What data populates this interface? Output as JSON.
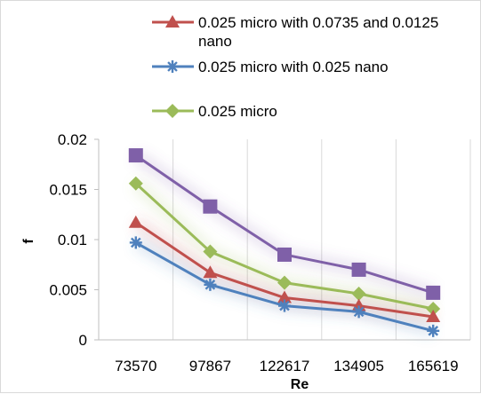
{
  "chart_data": {
    "type": "line",
    "title": "",
    "xlabel": "Re",
    "ylabel": "f",
    "categories": [
      "73570",
      "97867",
      "122617",
      "134905",
      "165619"
    ],
    "ylim": [
      0,
      0.02
    ],
    "yticks": [
      "0",
      "0.005",
      "0.01",
      "0.015",
      "0.02"
    ],
    "grid": "vertical gridlines",
    "legend_position": "top",
    "series": [
      {
        "key": "purple",
        "name": "",
        "color": "#7f60a8",
        "marker": "square",
        "values": [
          0.0184,
          0.0133,
          0.0085,
          0.007,
          0.0047
        ]
      },
      {
        "key": "green",
        "name": "0.025 micro",
        "color": "#9bbb59",
        "marker": "diamond",
        "values": [
          0.0156,
          0.0088,
          0.0057,
          0.0046,
          0.0031
        ]
      },
      {
        "key": "red",
        "name": "0.025 micro with 0.0735 and 0.0125 nano",
        "name_lines": [
          "0.025 micro with 0.0735 and 0.0125",
          "nano"
        ],
        "color": "#c0504d",
        "marker": "triangle",
        "values": [
          0.0117,
          0.0067,
          0.0042,
          0.0034,
          0.0023
        ]
      },
      {
        "key": "blue",
        "name": "0.025 micro with 0.025 nano",
        "color": "#4f81bd",
        "marker": "star",
        "values": [
          0.0097,
          0.0055,
          0.0034,
          0.0028,
          0.0009
        ]
      }
    ]
  }
}
